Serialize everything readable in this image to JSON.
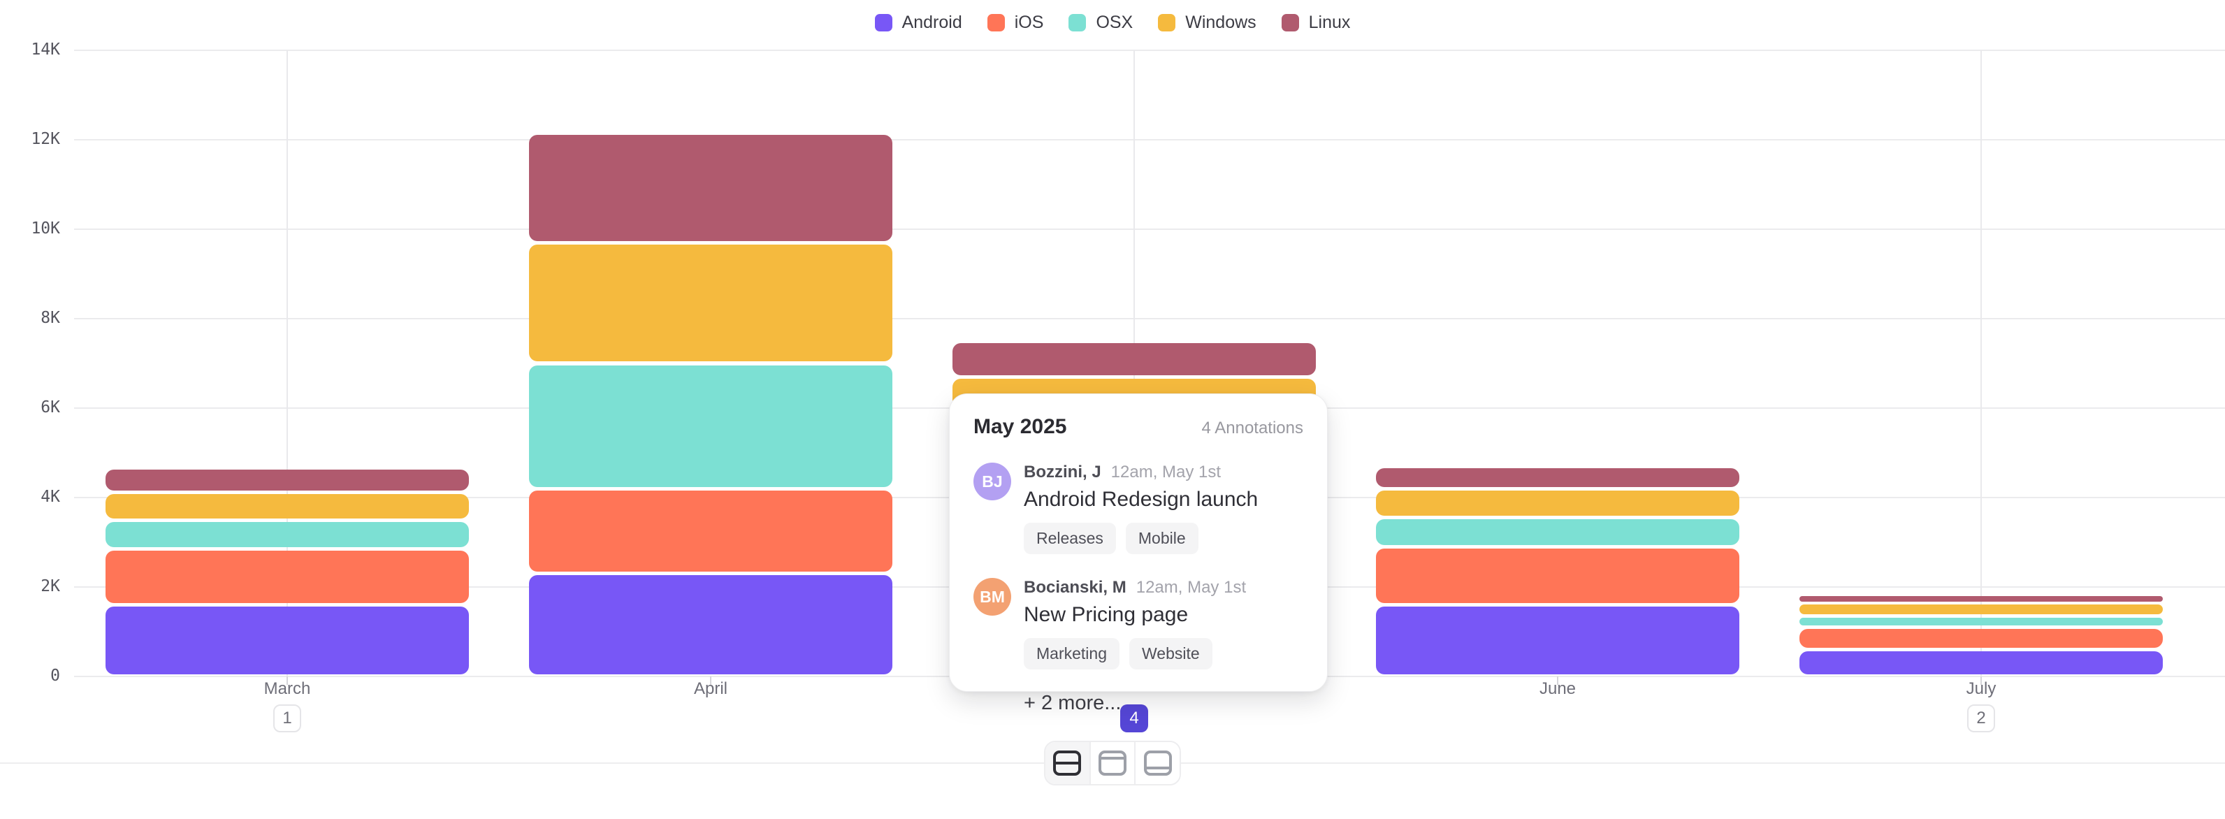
{
  "legend": {
    "items": [
      {
        "label": "Android",
        "color": "#7857F6"
      },
      {
        "label": "iOS",
        "color": "#FF7557"
      },
      {
        "label": "OSX",
        "color": "#7CE0D3"
      },
      {
        "label": "Windows",
        "color": "#F5BA3E"
      },
      {
        "label": "Linux",
        "color": "#B05A6E"
      }
    ]
  },
  "chart_data": {
    "type": "bar",
    "stacked": true,
    "categories": [
      "March",
      "April",
      "May",
      "June",
      "July"
    ],
    "series": [
      {
        "name": "Android",
        "color": "#7857F6",
        "values": [
          1600,
          2300,
          2200,
          1600,
          600
        ]
      },
      {
        "name": "iOS",
        "color": "#FF7557",
        "values": [
          1250,
          1900,
          1900,
          1300,
          500
        ]
      },
      {
        "name": "OSX",
        "color": "#7CE0D3",
        "values": [
          640,
          2800,
          1400,
          650,
          250
        ]
      },
      {
        "name": "Windows",
        "color": "#F5BA3E",
        "values": [
          620,
          2700,
          1200,
          650,
          300
        ]
      },
      {
        "name": "Linux",
        "color": "#B05A6E",
        "values": [
          550,
          2450,
          800,
          500,
          180
        ]
      }
    ],
    "title": "",
    "xlabel": "",
    "ylabel": "",
    "ylim": [
      0,
      14000
    ],
    "ytick_step": 2000,
    "ytick_labels": [
      "0",
      "2K",
      "4K",
      "6K",
      "8K",
      "10K",
      "12K",
      "14K"
    ],
    "grid": true,
    "legend_position": "top",
    "annotation_badges": [
      {
        "category": "March",
        "count": "1",
        "active": false
      },
      {
        "category": "May",
        "count": "4",
        "active": true
      },
      {
        "category": "July",
        "count": "2",
        "active": false
      }
    ],
    "popup_anchor_category": "May"
  },
  "popup": {
    "title": "May 2025",
    "count_label": "4 Annotations",
    "entries": [
      {
        "initials": "BJ",
        "avatar_color": "#B3A0F2",
        "author": "Bozzini, J",
        "time": "12am, May 1st",
        "title": "Android Redesign launch",
        "tags": [
          "Releases",
          "Mobile"
        ]
      },
      {
        "initials": "BM",
        "avatar_color": "#F3A172",
        "author": "Bocianski, M",
        "time": "12am, May 1st",
        "title": "New Pricing page",
        "tags": [
          "Marketing",
          "Website"
        ]
      }
    ],
    "more_label": "+ 2 more..."
  },
  "toolbar": {
    "icons": [
      {
        "name": "split-row-view-icon",
        "bar_position": "middle",
        "active": true
      },
      {
        "name": "top-panel-view-icon",
        "bar_position": "top",
        "active": false
      },
      {
        "name": "bottom-panel-view-icon",
        "bar_position": "bottom",
        "active": false
      }
    ]
  },
  "colors": {
    "badge_active": "#5546D6",
    "gridline": "#EBEBED",
    "annotation_line": "#E9E9EC",
    "axis_text": "#55555E",
    "month_text": "#6E6E78"
  }
}
